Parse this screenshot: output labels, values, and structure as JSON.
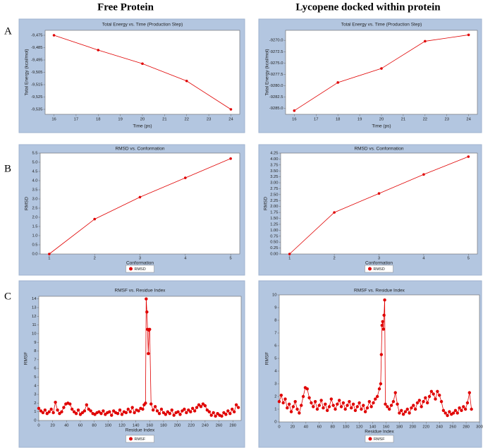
{
  "column_titles": [
    "Free Protein",
    "Lycopene docked within protein"
  ],
  "row_labels": [
    "A",
    "B",
    "C"
  ],
  "chart_data": [
    {
      "type": "line",
      "title": "Total Energy vs. Time (Production Step)",
      "xlabel": "Time (ps)",
      "ylabel": "Total Energy (kcal/mol)",
      "x": [
        16,
        18,
        20,
        22,
        24
      ],
      "series": [
        {
          "color": "#e00000",
          "values": [
            -9475,
            -9487,
            -9498,
            -9512,
            -9535
          ]
        }
      ],
      "xlim": [
        15.6,
        24.4
      ],
      "xticks": [
        16,
        17,
        18,
        19,
        20,
        21,
        22,
        23,
        24
      ],
      "ylim": [
        -9539,
        -9471
      ],
      "yticks": [
        {
          "value": -9475,
          "label": "-9,475"
        },
        {
          "value": -9485,
          "label": "-9,485"
        },
        {
          "value": -9495,
          "label": "-9,495"
        },
        {
          "value": -9505,
          "label": "-9,505"
        },
        {
          "value": -9515,
          "label": "-9,515"
        },
        {
          "value": -9525,
          "label": "-9,525"
        },
        {
          "value": -9535,
          "label": "-9,535"
        }
      ]
    },
    {
      "type": "line",
      "title": "Total Energy vs. Time (Production Step)",
      "xlabel": "Time (ps)",
      "ylabel": "Total Energy (kcal/mol)",
      "x": [
        16,
        18,
        20,
        22,
        24
      ],
      "series": [
        {
          "color": "#e00000",
          "values": [
            -9285.5,
            -9279.3,
            -9276.2,
            -9270.2,
            -9268.8
          ]
        }
      ],
      "xlim": [
        15.6,
        24.4
      ],
      "xticks": [
        16,
        17,
        18,
        19,
        20,
        21,
        22,
        23,
        24
      ],
      "ylim": [
        -9286.3,
        -9267.8
      ],
      "yticks": [
        {
          "value": -9285,
          "label": "-9285.0"
        },
        -9282.5,
        {
          "value": -9280,
          "label": "-9280.0"
        },
        -9277.5,
        {
          "value": -9275,
          "label": "-9275.0"
        },
        -9272.5,
        {
          "value": -9270,
          "label": "-9270.0"
        }
      ]
    },
    {
      "type": "line",
      "title": "RMSD vs. Conformation",
      "xlabel": "Conformation",
      "ylabel": "RMSD",
      "legend": "bottom",
      "x": [
        1,
        2,
        3,
        4,
        5
      ],
      "series": [
        {
          "name": "RMSD",
          "color": "#e00000",
          "values": [
            0,
            1.9,
            3.1,
            4.15,
            5.2
          ]
        }
      ],
      "xlim": [
        0.8,
        5.2
      ],
      "xticks": [
        1,
        2,
        3,
        4,
        5
      ],
      "ylim": [
        0,
        5.5
      ],
      "yticks": [
        {
          "value": 0,
          "label": "0.0"
        },
        0.5,
        {
          "value": 1,
          "label": "1.0"
        },
        1.5,
        {
          "value": 2,
          "label": "2.0"
        },
        2.5,
        {
          "value": 3,
          "label": "3.0"
        },
        3.5,
        {
          "value": 4,
          "label": "4.0"
        },
        4.5,
        {
          "value": 5,
          "label": "5.0"
        },
        5.5
      ]
    },
    {
      "type": "line",
      "title": "RMSD vs. Conformation",
      "xlabel": "Conformation",
      "ylabel": "RMSD",
      "legend": "bottom",
      "x": [
        1,
        2,
        3,
        4,
        5
      ],
      "series": [
        {
          "name": "RMSD",
          "color": "#e00000",
          "values": [
            0,
            1.75,
            2.55,
            3.35,
            4.1
          ]
        }
      ],
      "xlim": [
        0.8,
        5.2
      ],
      "xticks": [
        1,
        2,
        3,
        4,
        5
      ],
      "ylim": [
        0,
        4.25
      ],
      "yticks": [
        {
          "value": 0,
          "label": "0.00"
        },
        0.25,
        {
          "value": 0.5,
          "label": "0.50"
        },
        0.75,
        {
          "value": 1,
          "label": "1.00"
        },
        1.25,
        {
          "value": 1.5,
          "label": "1.50"
        },
        1.75,
        {
          "value": 2,
          "label": "2.00"
        },
        2.25,
        {
          "value": 2.5,
          "label": "2.50"
        },
        2.75,
        {
          "value": 3,
          "label": "3.00"
        },
        3.25,
        {
          "value": 3.5,
          "label": "3.50"
        },
        3.75,
        {
          "value": 4,
          "label": "4.00"
        },
        4.25
      ]
    },
    {
      "type": "line",
      "title": "RMSF vs. Residue Index",
      "xlabel": "Residue Index",
      "ylabel": "RMSF",
      "legend": "bottom",
      "x": [
        0,
        3,
        6,
        9,
        12,
        15,
        18,
        21,
        24,
        27,
        30,
        33,
        36,
        39,
        42,
        45,
        48,
        51,
        54,
        57,
        60,
        63,
        66,
        69,
        72,
        75,
        78,
        81,
        84,
        87,
        90,
        93,
        96,
        99,
        102,
        105,
        108,
        111,
        114,
        117,
        120,
        123,
        126,
        129,
        132,
        135,
        138,
        141,
        144,
        147,
        150,
        152,
        154,
        155,
        156,
        157,
        158,
        159,
        160,
        162,
        165,
        168,
        171,
        174,
        177,
        180,
        183,
        186,
        189,
        192,
        195,
        198,
        201,
        204,
        207,
        210,
        213,
        216,
        219,
        222,
        225,
        228,
        231,
        234,
        237,
        240,
        243,
        246,
        249,
        252,
        255,
        258,
        261,
        264,
        267,
        270,
        273,
        276,
        279,
        282,
        285,
        288
      ],
      "series": [
        {
          "name": "RMSF",
          "color": "#e00000",
          "values": [
            1.4,
            1.1,
            0.9,
            1.2,
            0.8,
            1.0,
            1.3,
            0.9,
            2.1,
            1.2,
            0.8,
            1.0,
            1.5,
            1.9,
            2.0,
            1.9,
            1.3,
            1.0,
            0.8,
            1.2,
            0.7,
            0.9,
            1.1,
            1.8,
            1.3,
            1.1,
            0.8,
            0.7,
            0.9,
            1.0,
            0.8,
            1.1,
            0.7,
            0.9,
            1.0,
            0.6,
            1.1,
            0.9,
            0.8,
            1.2,
            0.7,
            1.0,
            0.9,
            1.3,
            1.0,
            1.5,
            0.9,
            1.2,
            1.1,
            1.4,
            1.3,
            1.8,
            2.0,
            14.0,
            12.5,
            10.5,
            7.7,
            10.4,
            10.5,
            1.9,
            1.2,
            1.6,
            1.1,
            0.8,
            1.3,
            0.9,
            0.7,
            1.0,
            0.8,
            1.2,
            0.6,
            0.9,
            1.0,
            0.7,
            1.1,
            1.3,
            0.9,
            1.2,
            1.0,
            1.4,
            1.1,
            1.5,
            1.8,
            1.6,
            1.9,
            1.7,
            1.2,
            1.0,
            0.6,
            0.9,
            0.5,
            0.8,
            0.6,
            0.5,
            0.9,
            0.7,
            1.1,
            0.8,
            1.3,
            1.0,
            1.8,
            1.5
          ]
        }
      ],
      "xlim": [
        0,
        292
      ],
      "xticks": [
        0,
        20,
        40,
        60,
        80,
        100,
        120,
        140,
        160,
        180,
        200,
        220,
        240,
        260,
        280
      ],
      "ylim": [
        0,
        14.3
      ],
      "yticks": [
        0,
        1,
        2,
        3,
        4,
        5,
        6,
        7,
        8,
        9,
        10,
        11,
        12,
        13,
        14
      ]
    },
    {
      "type": "line",
      "title": "RMSF vs. Residue Index",
      "xlabel": "Residue Index",
      "ylabel": "RMSF",
      "legend": "bottom",
      "x": [
        0,
        3,
        6,
        9,
        12,
        15,
        18,
        21,
        24,
        27,
        30,
        33,
        36,
        39,
        42,
        45,
        48,
        51,
        54,
        57,
        60,
        63,
        66,
        69,
        72,
        75,
        78,
        81,
        84,
        87,
        90,
        93,
        96,
        99,
        102,
        105,
        108,
        111,
        114,
        117,
        120,
        123,
        126,
        129,
        132,
        135,
        138,
        141,
        144,
        147,
        150,
        152,
        153,
        154,
        155,
        156,
        157,
        158,
        159,
        162,
        165,
        168,
        171,
        174,
        177,
        180,
        183,
        186,
        189,
        192,
        195,
        198,
        201,
        204,
        207,
        210,
        213,
        216,
        219,
        222,
        225,
        228,
        231,
        234,
        237,
        240,
        243,
        246,
        249,
        252,
        255,
        258,
        261,
        264,
        267,
        270,
        273,
        276,
        279,
        282,
        285,
        288
      ],
      "series": [
        {
          "name": "RMSF",
          "color": "#e00000",
          "values": [
            1.6,
            2.1,
            1.5,
            1.8,
            1.1,
            1.4,
            0.8,
            1.2,
            1.6,
            1.0,
            0.7,
            1.3,
            2.0,
            2.7,
            2.6,
            1.9,
            1.5,
            1.2,
            1.6,
            1.0,
            1.3,
            1.7,
            1.1,
            1.4,
            0.9,
            1.2,
            1.8,
            1.3,
            1.0,
            1.4,
            1.7,
            1.2,
            1.5,
            1.0,
            1.3,
            1.6,
            1.1,
            1.4,
            0.9,
            1.2,
            1.5,
            1.0,
            1.3,
            0.8,
            1.1,
            1.6,
            1.2,
            1.5,
            1.8,
            2.0,
            2.6,
            3.0,
            5.3,
            7.6,
            7.9,
            7.3,
            8.4,
            9.6,
            1.4,
            1.2,
            1.0,
            1.3,
            1.6,
            2.3,
            1.4,
            0.7,
            0.9,
            0.6,
            0.8,
            1.0,
            0.7,
            1.1,
            1.3,
            1.0,
            1.5,
            1.7,
            1.2,
            1.6,
            1.9,
            1.5,
            2.0,
            2.4,
            2.2,
            1.8,
            2.4,
            2.1,
            1.6,
            0.9,
            0.7,
            0.5,
            0.8,
            0.6,
            0.7,
            0.9,
            0.7,
            1.1,
            0.9,
            1.2,
            1.0,
            1.5,
            2.3,
            1.0
          ]
        }
      ],
      "xlim": [
        0,
        300
      ],
      "xticks": [
        0,
        20,
        40,
        60,
        80,
        100,
        120,
        140,
        160,
        180,
        200,
        220,
        240,
        260,
        280,
        300
      ],
      "ylim": [
        0,
        10
      ],
      "yticks": [
        0,
        1,
        2,
        3,
        4,
        5,
        6,
        7,
        8,
        9,
        10
      ]
    }
  ]
}
